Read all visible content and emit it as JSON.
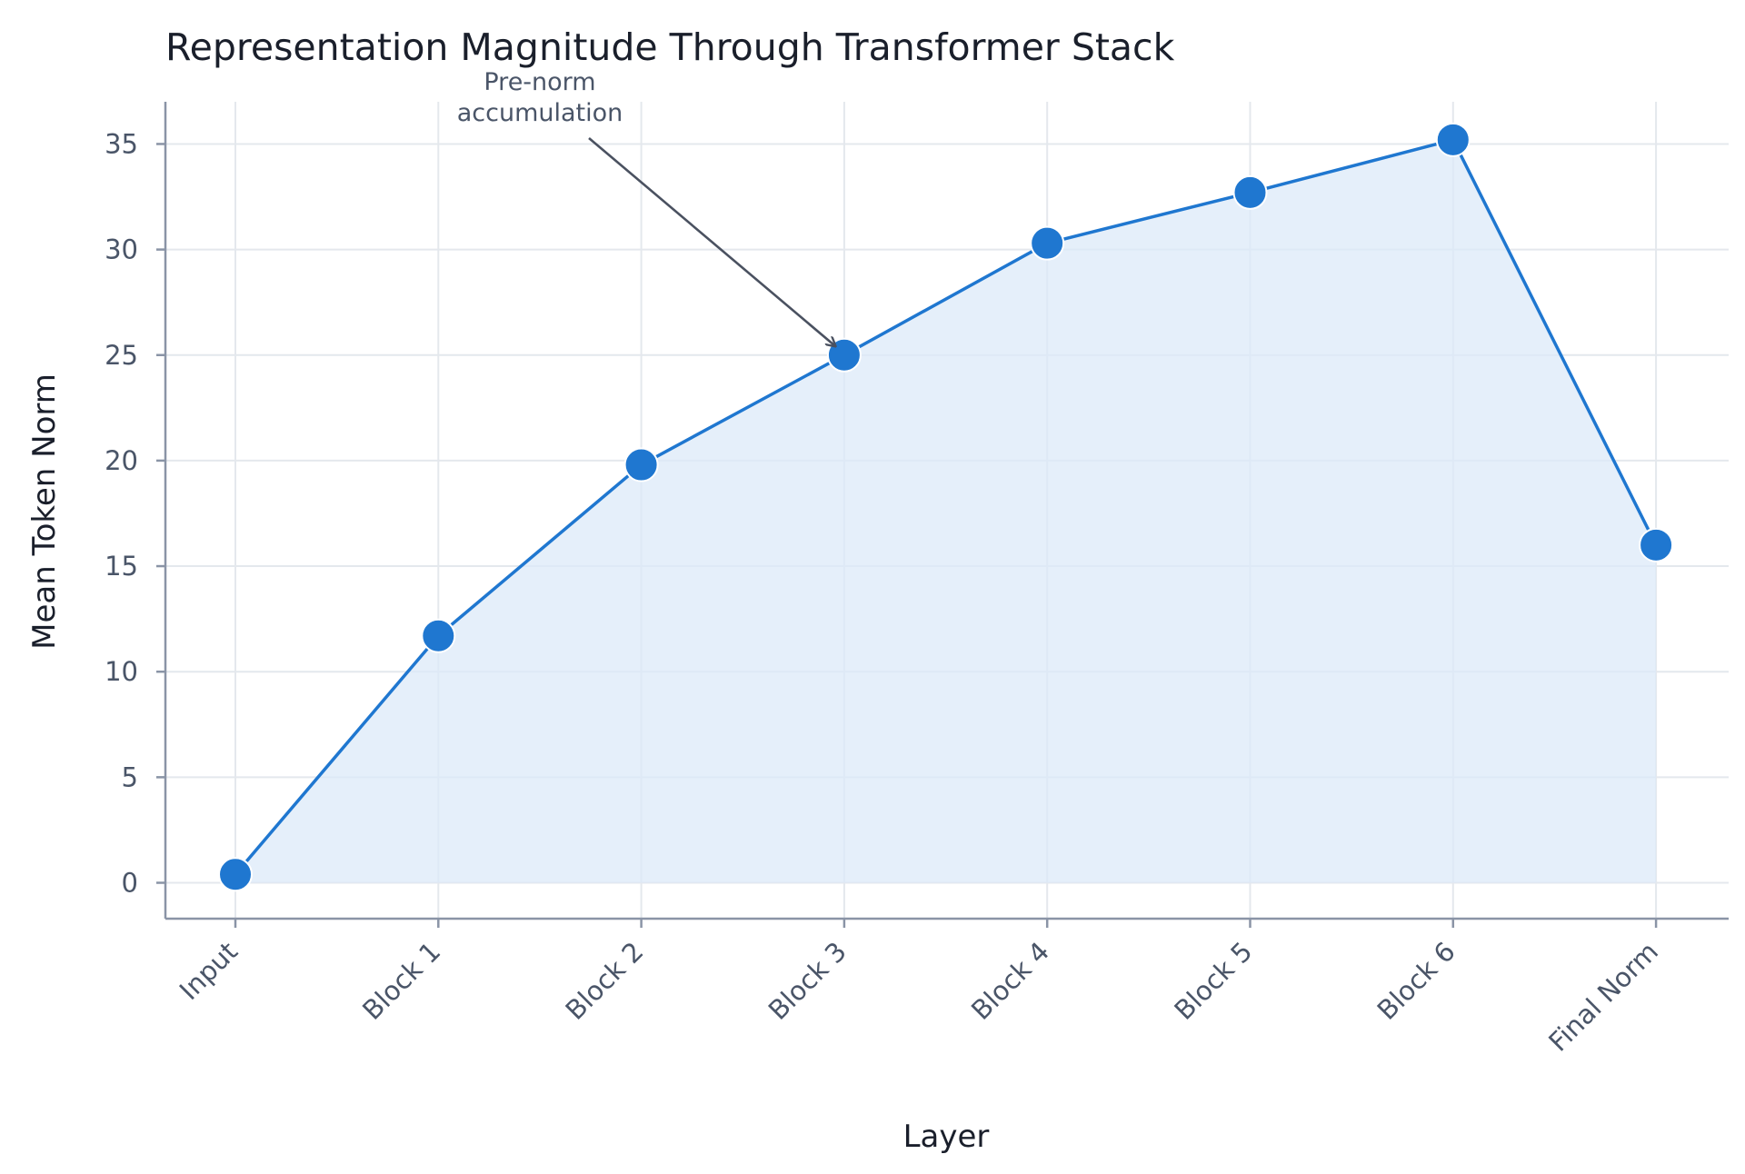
{
  "chart_data": {
    "type": "line",
    "title": "Representation Magnitude Through Transformer Stack",
    "xlabel": "Layer",
    "ylabel": "Mean Token Norm",
    "categories": [
      "Input",
      "Block 1",
      "Block 2",
      "Block 3",
      "Block 4",
      "Block 5",
      "Block 6",
      "Final Norm"
    ],
    "series": [
      {
        "values": [
          0.4,
          11.7,
          19.8,
          25.0,
          30.3,
          32.7,
          35.2,
          16.0
        ]
      }
    ],
    "ylim": [
      -1.7,
      37
    ],
    "yticks": [
      0,
      5,
      10,
      15,
      20,
      25,
      30,
      35
    ],
    "grid": true,
    "area_fill": true,
    "annotations": [
      {
        "text_lines": [
          "Pre-norm",
          "accumulation"
        ],
        "target_category": "Block 3",
        "target_value": 25.0
      }
    ],
    "colors": {
      "line": "#1f77d0",
      "fill": "#dceaf8",
      "marker": "#1f77d0",
      "arrow": "#4a5160"
    }
  }
}
